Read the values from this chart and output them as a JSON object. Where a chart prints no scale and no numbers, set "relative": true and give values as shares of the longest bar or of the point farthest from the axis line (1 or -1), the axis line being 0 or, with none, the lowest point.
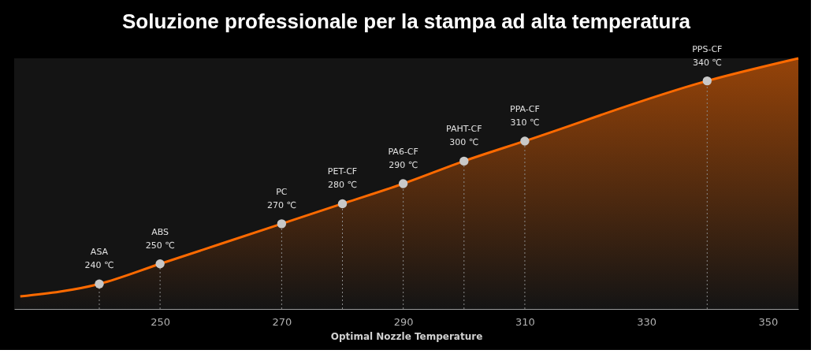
{
  "chart_data": {
    "type": "area",
    "title": "Soluzione professionale per la stampa ad alta temperatura",
    "xlabel": "Optimal Nozzle Temperature",
    "relative": true,
    "xlim": [
      226,
      355
    ],
    "xticks": [
      250,
      270,
      290,
      310,
      330,
      350
    ],
    "grid": false,
    "series": [
      {
        "color": "#ff6a00",
        "x": [
          227,
          240,
          250,
          270,
          280,
          290,
          300,
          310,
          340,
          355
        ],
        "values": [
          0.05,
          0.1,
          0.18,
          0.34,
          0.42,
          0.5,
          0.59,
          0.67,
          0.91,
          1.0
        ]
      },
      {
        "type": "lollipop",
        "color": "#c8c8c8",
        "marker": "circle",
        "line_style": "dotted",
        "x": [
          240,
          250,
          270,
          280,
          290,
          300,
          310,
          340
        ],
        "values": [
          0.1,
          0.18,
          0.34,
          0.42,
          0.5,
          0.59,
          0.67,
          0.91
        ]
      }
    ],
    "annotations": [
      {
        "text": "ASA\n240 ℃",
        "x": 240,
        "y": 0.1
      },
      {
        "text": "ABS\n250 ℃",
        "x": 250,
        "y": 0.18
      },
      {
        "text": "PC\n270 ℃",
        "x": 270,
        "y": 0.34
      },
      {
        "text": "PET-CF\n280 ℃",
        "x": 280,
        "y": 0.42
      },
      {
        "text": "PA6-CF\n290 ℃",
        "x": 290,
        "y": 0.5
      },
      {
        "text": "PAHT-CF\n300 ℃",
        "x": 300,
        "y": 0.59
      },
      {
        "text": "PPA-CF\n310 ℃",
        "x": 310,
        "y": 0.67
      },
      {
        "text": "PPS-CF\n340 ℃",
        "x": 340,
        "y": 0.91
      }
    ]
  }
}
